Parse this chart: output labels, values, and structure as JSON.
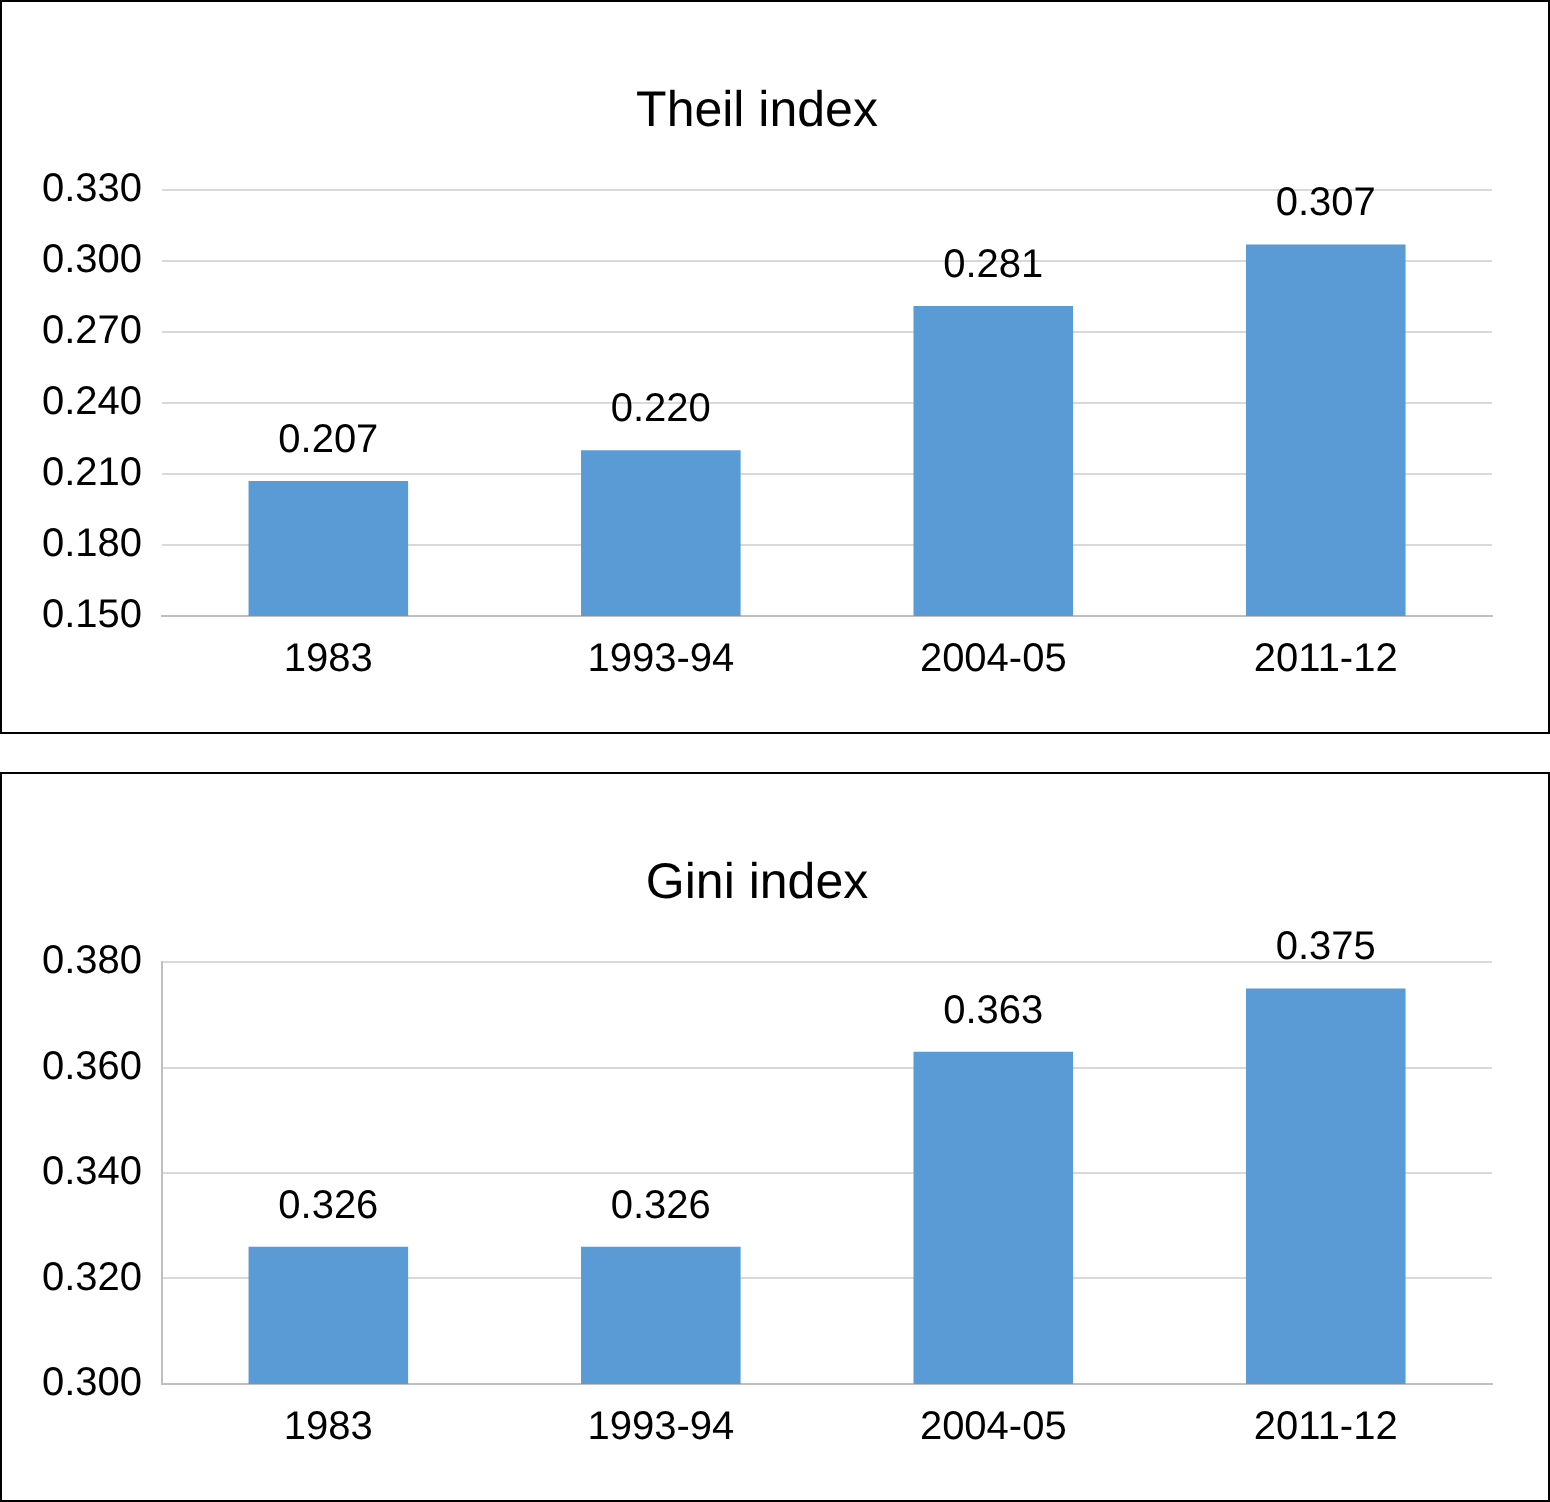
{
  "chart_data": [
    {
      "type": "bar",
      "title": "Theil index",
      "categories": [
        "1983",
        "1993-94",
        "2004-05",
        "2011-12"
      ],
      "values": [
        0.207,
        0.22,
        0.281,
        0.307
      ],
      "value_labels": [
        "0.207",
        "0.220",
        "0.281",
        "0.307"
      ],
      "color": "#5b9bd5",
      "ylim": [
        0.15,
        0.33
      ],
      "yticks": [
        {
          "value": 0.15,
          "label": "0.150"
        },
        {
          "value": 0.18,
          "label": "0.180"
        },
        {
          "value": 0.21,
          "label": "0.210"
        },
        {
          "value": 0.24,
          "label": "0.240"
        },
        {
          "value": 0.27,
          "label": "0.270"
        },
        {
          "value": 0.3,
          "label": "0.300"
        },
        {
          "value": 0.33,
          "label": "0.330"
        }
      ],
      "grid": "y",
      "legend": false
    },
    {
      "type": "bar",
      "title": "Gini index",
      "categories": [
        "1983",
        "1993-94",
        "2004-05",
        "2011-12"
      ],
      "values": [
        0.326,
        0.326,
        0.363,
        0.375
      ],
      "value_labels": [
        "0.326",
        "0.326",
        "0.363",
        "0.375"
      ],
      "color": "#5b9bd5",
      "ylim": [
        0.3,
        0.38
      ],
      "yticks": [
        {
          "value": 0.3,
          "label": "0.300"
        },
        {
          "value": 0.32,
          "label": "0.320"
        },
        {
          "value": 0.34,
          "label": "0.340"
        },
        {
          "value": 0.36,
          "label": "0.360"
        },
        {
          "value": 0.38,
          "label": "0.380"
        }
      ],
      "grid": "y",
      "legend": false
    }
  ]
}
